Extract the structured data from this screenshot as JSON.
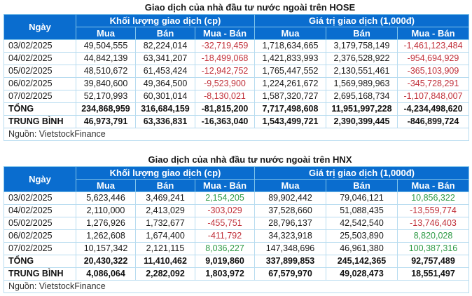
{
  "hose": {
    "title": "Giao dịch của nhà đầu tư nước ngoài trên HOSE",
    "header": {
      "date": "Ngày",
      "volume_group": "Khối lượng giao dịch (cp)",
      "value_group": "Giá trị giao dịch (1,000đ)",
      "buy": "Mua",
      "sell": "Bán",
      "net": "Mua - Bán"
    },
    "rows": [
      {
        "date": "03/02/2025",
        "vol_buy": "49,504,555",
        "vol_sell": "82,224,014",
        "vol_net": "-32,719,459",
        "val_buy": "1,718,634,665",
        "val_sell": "3,179,758,149",
        "val_net": "-1,461,123,484"
      },
      {
        "date": "04/02/2025",
        "vol_buy": "44,842,139",
        "vol_sell": "63,341,207",
        "vol_net": "-18,499,068",
        "val_buy": "1,421,833,993",
        "val_sell": "2,376,528,922",
        "val_net": "-954,694,929"
      },
      {
        "date": "05/02/2025",
        "vol_buy": "48,510,672",
        "vol_sell": "61,453,424",
        "vol_net": "-12,942,752",
        "val_buy": "1,765,447,552",
        "val_sell": "2,130,551,461",
        "val_net": "-365,103,909"
      },
      {
        "date": "06/02/2025",
        "vol_buy": "39,840,600",
        "vol_sell": "49,364,500",
        "vol_net": "-9,523,900",
        "val_buy": "1,224,261,672",
        "val_sell": "1,569,989,963",
        "val_net": "-345,728,291"
      },
      {
        "date": "07/02/2025",
        "vol_buy": "52,170,993",
        "vol_sell": "60,301,014",
        "vol_net": "-8,130,021",
        "val_buy": "1,587,320,727",
        "val_sell": "2,695,168,734",
        "val_net": "-1,107,848,007"
      }
    ],
    "total": {
      "label": "TỔNG",
      "vol_buy": "234,868,959",
      "vol_sell": "316,684,159",
      "vol_net": "-81,815,200",
      "val_buy": "7,717,498,608",
      "val_sell": "11,951,997,228",
      "val_net": "-4,234,498,620"
    },
    "average": {
      "label": "TRUNG BÌNH",
      "vol_buy": "46,973,791",
      "vol_sell": "63,336,831",
      "vol_net": "-16,363,040",
      "val_buy": "1,543,499,721",
      "val_sell": "2,390,399,445",
      "val_net": "-846,899,724"
    },
    "source": "Nguồn: VietstockFinance"
  },
  "hnx": {
    "title": "Giao dịch của nhà đầu tư nước ngoài trên HNX",
    "header": {
      "date": "Ngày",
      "volume_group": "Khối lượng giao dịch (cp)",
      "value_group": "Giá trị giao dịch (1,000đ)",
      "buy": "Mua",
      "sell": "Bán",
      "net": "Mua - Bán"
    },
    "rows": [
      {
        "date": "03/02/2025",
        "vol_buy": "5,623,446",
        "vol_sell": "3,469,241",
        "vol_net": "2,154,205",
        "val_buy": "89,902,442",
        "val_sell": "79,046,121",
        "val_net": "10,856,322"
      },
      {
        "date": "04/02/2025",
        "vol_buy": "2,110,000",
        "vol_sell": "2,413,029",
        "vol_net": "-303,029",
        "val_buy": "37,528,660",
        "val_sell": "51,088,435",
        "val_net": "-13,559,774"
      },
      {
        "date": "05/02/2025",
        "vol_buy": "1,276,926",
        "vol_sell": "1,732,677",
        "vol_net": "-455,751",
        "val_buy": "28,796,137",
        "val_sell": "42,542,540",
        "val_net": "-13,746,403"
      },
      {
        "date": "06/02/2025",
        "vol_buy": "1,262,608",
        "vol_sell": "1,674,400",
        "vol_net": "-411,792",
        "val_buy": "34,323,918",
        "val_sell": "25,503,890",
        "val_net": "8,820,028"
      },
      {
        "date": "07/02/2025",
        "vol_buy": "10,157,342",
        "vol_sell": "2,121,115",
        "vol_net": "8,036,227",
        "val_buy": "147,348,696",
        "val_sell": "46,961,380",
        "val_net": "100,387,316"
      }
    ],
    "total": {
      "label": "TỔNG",
      "vol_buy": "20,430,322",
      "vol_sell": "11,410,462",
      "vol_net": "9,019,860",
      "val_buy": "337,899,853",
      "val_sell": "245,142,365",
      "val_net": "92,757,489"
    },
    "average": {
      "label": "TRUNG BÌNH",
      "vol_buy": "4,086,064",
      "vol_sell": "2,282,092",
      "vol_net": "1,803,972",
      "val_buy": "67,579,970",
      "val_sell": "49,028,473",
      "val_net": "18,551,497"
    },
    "source": "Nguồn: VietstockFinance"
  },
  "colors": {
    "header_bg": "#0a6dcf",
    "negative": "#c0303a",
    "positive": "#2e9a46",
    "grid": "#b8dcf0"
  }
}
